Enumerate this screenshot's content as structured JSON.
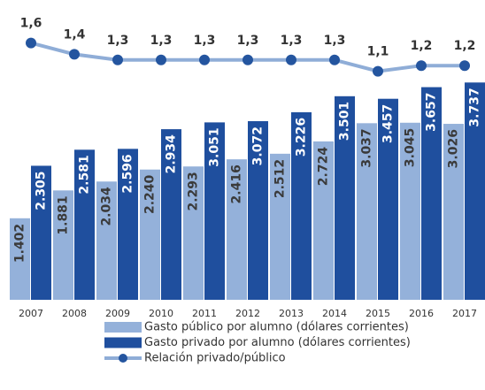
{
  "chart_data": {
    "type": "bar",
    "categories": [
      "2007",
      "2008",
      "2009",
      "2010",
      "2011",
      "2012",
      "2013",
      "2014",
      "2015",
      "2016",
      "2017"
    ],
    "series": [
      {
        "name": "Gasto público por alumno (dólares corrientes)",
        "color": "#94b1da",
        "values": [
          1402,
          1881,
          2034,
          2240,
          2293,
          2416,
          2512,
          2724,
          3037,
          3045,
          3026
        ],
        "value_labels": [
          "1.402",
          "1.881",
          "2.034",
          "2.240",
          "2.293",
          "2.416",
          "2.512",
          "2.724",
          "3.037",
          "3.045",
          "3.026"
        ]
      },
      {
        "name": "Gasto privado por alumno (dólares corrientes)",
        "color": "#1f4f9e",
        "values": [
          2305,
          2581,
          2596,
          2934,
          3051,
          3072,
          3226,
          3501,
          3457,
          3657,
          3737
        ],
        "value_labels": [
          "2.305",
          "2.581",
          "2.596",
          "2.934",
          "3.051",
          "3.072",
          "3.226",
          "3.501",
          "3.457",
          "3.657",
          "3.737"
        ]
      },
      {
        "name": "Relación privado/público",
        "type": "line",
        "axis": "y2",
        "color": "#8fadd7",
        "marker_color": "#24559f",
        "values": [
          1.6,
          1.4,
          1.3,
          1.3,
          1.3,
          1.3,
          1.3,
          1.3,
          1.1,
          1.2,
          1.2
        ],
        "value_labels": [
          "1,6",
          "1,4",
          "1,3",
          "1,3",
          "1,3",
          "1,3",
          "1,3",
          "1,3",
          "1,1",
          "1,2",
          "1,2"
        ]
      }
    ],
    "ylim": [
      0,
      4000
    ],
    "y2lim": [
      0,
      2
    ],
    "legend": "bottom"
  }
}
